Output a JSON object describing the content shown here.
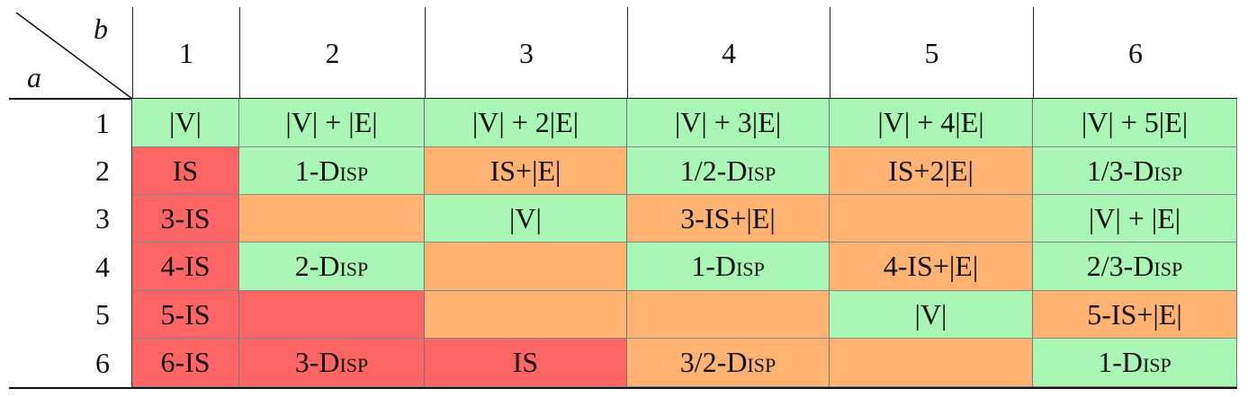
{
  "table": {
    "corner": {
      "row_axis": "a",
      "column_axis": "b"
    },
    "columns": [
      1,
      2,
      3,
      4,
      5,
      6
    ],
    "rows": [
      {
        "label": 1,
        "cells": [
          {
            "text": "|V|",
            "fill": "#aaf7b5"
          },
          {
            "text": "|V| + |E|",
            "fill": "#aaf7b5"
          },
          {
            "text": "|V| + 2|E|",
            "fill": "#aaf7b5"
          },
          {
            "text": "|V| + 3|E|",
            "fill": "#aaf7b5"
          },
          {
            "text": "|V| + 4|E|",
            "fill": "#aaf7b5"
          },
          {
            "text": "|V| + 5|E|",
            "fill": "#aaf7b5"
          }
        ]
      },
      {
        "label": 2,
        "cells": [
          {
            "text": "IS",
            "fill": "#fe6666"
          },
          {
            "text": "1-Disp",
            "fill": "#aaf7b5"
          },
          {
            "text": "IS+|E|",
            "fill": "#feb372"
          },
          {
            "text": "1/2-Disp",
            "fill": "#aaf7b5"
          },
          {
            "text": "IS+2|E|",
            "fill": "#feb372"
          },
          {
            "text": "1/3-Disp",
            "fill": "#aaf7b5"
          }
        ]
      },
      {
        "label": 3,
        "cells": [
          {
            "text": "3-IS",
            "fill": "#fe6666"
          },
          {
            "text": null,
            "fill": "#feb372"
          },
          {
            "text": "|V|",
            "fill": "#aaf7b5"
          },
          {
            "text": "3-IS+|E|",
            "fill": "#feb372"
          },
          {
            "text": null,
            "fill": "#feb372"
          },
          {
            "text": "|V| + |E|",
            "fill": "#aaf7b5"
          }
        ]
      },
      {
        "label": 4,
        "cells": [
          {
            "text": "4-IS",
            "fill": "#fe6666"
          },
          {
            "text": "2-Disp",
            "fill": "#aaf7b5"
          },
          {
            "text": null,
            "fill": "#feb372"
          },
          {
            "text": "1-Disp",
            "fill": "#aaf7b5"
          },
          {
            "text": "4-IS+|E|",
            "fill": "#feb372"
          },
          {
            "text": "2/3-Disp",
            "fill": "#aaf7b5"
          }
        ]
      },
      {
        "label": 5,
        "cells": [
          {
            "text": "5-IS",
            "fill": "#fe6666"
          },
          {
            "text": null,
            "fill": "#fe6666"
          },
          {
            "text": null,
            "fill": "#feb372"
          },
          {
            "text": null,
            "fill": "#feb372"
          },
          {
            "text": "|V|",
            "fill": "#aaf7b5"
          },
          {
            "text": "5-IS+|E|",
            "fill": "#feb372"
          }
        ]
      },
      {
        "label": 6,
        "cells": [
          {
            "text": "6-IS",
            "fill": "#fe6666"
          },
          {
            "text": "3-Disp",
            "fill": "#fe6666"
          },
          {
            "text": "IS",
            "fill": "#fe6666"
          },
          {
            "text": "3/2-Disp",
            "fill": "#feb372"
          },
          {
            "text": null,
            "fill": "#feb372"
          },
          {
            "text": "1-Disp",
            "fill": "#aaf7b5"
          }
        ]
      }
    ]
  }
}
